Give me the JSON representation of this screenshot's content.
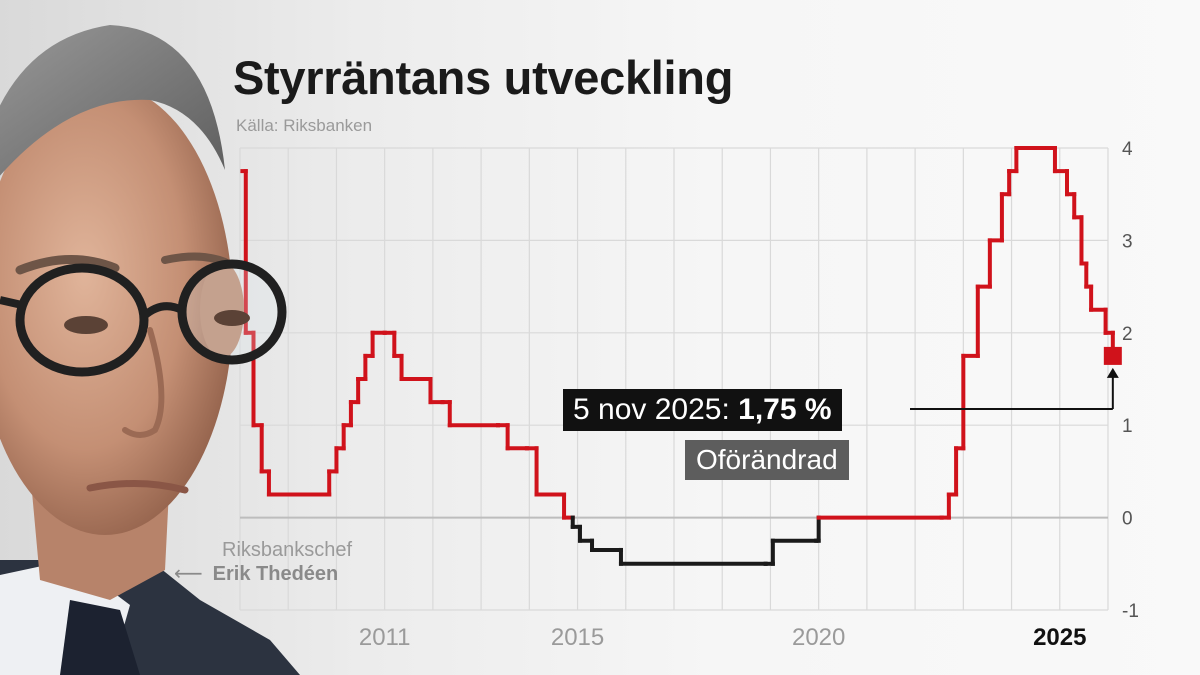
{
  "chart_data": {
    "type": "line",
    "title": "Styrräntans utveckling",
    "subtitle": "Källa: Riksbanken",
    "xlabel": "",
    "ylabel": "",
    "xlim": [
      2008.0,
      2026.0
    ],
    "ylim": [
      -1,
      4
    ],
    "y_ticks": [
      4,
      3,
      2,
      1,
      0,
      -1
    ],
    "x_ticks": [
      {
        "value": 2011,
        "label": "2011",
        "bold": false
      },
      {
        "value": 2015,
        "label": "2015",
        "bold": false
      },
      {
        "value": 2020,
        "label": "2020",
        "bold": false
      },
      {
        "value": 2025,
        "label": "2025",
        "bold": true
      }
    ],
    "y_axis_side": "right",
    "grid": true,
    "colors": {
      "positive": "#d0121b",
      "negative": "#1a1a1a",
      "zero_line": "#bdbdbd",
      "grid": "#d9d9d9"
    },
    "series": [
      {
        "step": true,
        "points": [
          [
            2008.05,
            3.75
          ],
          [
            2008.12,
            2.0
          ],
          [
            2008.28,
            1.0
          ],
          [
            2008.45,
            0.5
          ],
          [
            2008.6,
            0.25
          ],
          [
            2009.65,
            0.25
          ],
          [
            2009.85,
            0.5
          ],
          [
            2010.0,
            0.75
          ],
          [
            2010.15,
            1.0
          ],
          [
            2010.3,
            1.25
          ],
          [
            2010.45,
            1.5
          ],
          [
            2010.6,
            1.75
          ],
          [
            2010.75,
            2.0
          ],
          [
            2011.0,
            2.0
          ],
          [
            2011.2,
            1.75
          ],
          [
            2011.35,
            1.5
          ],
          [
            2011.8,
            1.5
          ],
          [
            2011.95,
            1.25
          ],
          [
            2012.2,
            1.25
          ],
          [
            2012.35,
            1.0
          ],
          [
            2013.35,
            1.0
          ],
          [
            2013.55,
            0.75
          ],
          [
            2013.95,
            0.75
          ],
          [
            2014.15,
            0.25
          ],
          [
            2014.55,
            0.25
          ],
          [
            2014.72,
            0.0
          ],
          [
            2014.9,
            -0.1
          ],
          [
            2015.05,
            -0.25
          ],
          [
            2015.3,
            -0.35
          ],
          [
            2015.9,
            -0.5
          ],
          [
            2018.9,
            -0.5
          ],
          [
            2019.05,
            -0.25
          ],
          [
            2019.95,
            -0.25
          ],
          [
            2020.0,
            0.0
          ],
          [
            2022.55,
            0.0
          ],
          [
            2022.7,
            0.25
          ],
          [
            2022.85,
            0.75
          ],
          [
            2023.0,
            1.75
          ],
          [
            2023.3,
            2.5
          ],
          [
            2023.55,
            3.0
          ],
          [
            2023.8,
            3.5
          ],
          [
            2023.95,
            3.75
          ],
          [
            2024.1,
            4.0
          ],
          [
            2024.75,
            4.0
          ],
          [
            2024.9,
            3.75
          ],
          [
            2025.15,
            3.5
          ],
          [
            2025.3,
            3.25
          ],
          [
            2025.45,
            2.75
          ],
          [
            2025.55,
            2.5
          ],
          [
            2025.65,
            2.25
          ],
          [
            2025.95,
            2.0
          ],
          [
            2026.1,
            1.75
          ]
        ]
      }
    ],
    "latest_point": {
      "x": 2026.1,
      "y": 1.75,
      "color": "#d0121b"
    },
    "annotation": {
      "date": "5 nov 2025:",
      "value": "1,75 %",
      "status": "Oförändrad"
    }
  },
  "portrait": {
    "role": "Riksbankschef",
    "name": "Erik Thedéen",
    "arrow": "⟵"
  }
}
